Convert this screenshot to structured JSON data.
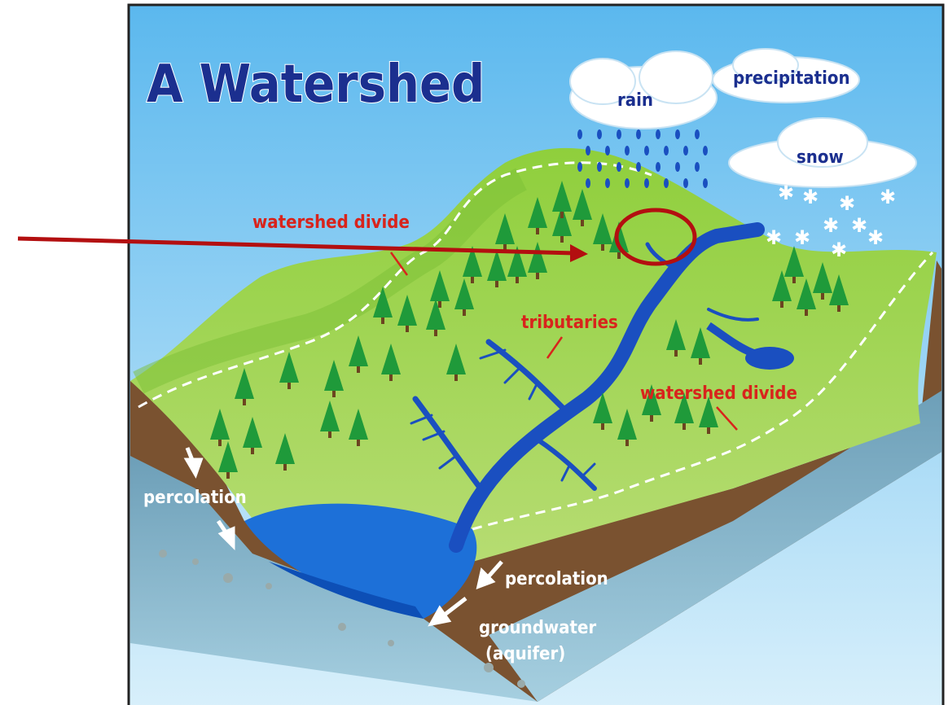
{
  "title": "A Watershed",
  "clouds": [
    {
      "label": "rain"
    },
    {
      "label": "precipitation"
    },
    {
      "label": "snow"
    }
  ],
  "callouts": [
    {
      "label": "watershed divide"
    },
    {
      "label": "tributaries"
    },
    {
      "label": "watershed divide"
    }
  ],
  "flows": [
    {
      "label": "percolation"
    },
    {
      "label": "percolation"
    }
  ],
  "aquifer": {
    "lines": [
      "groundwater",
      "(aquifer)"
    ]
  }
}
